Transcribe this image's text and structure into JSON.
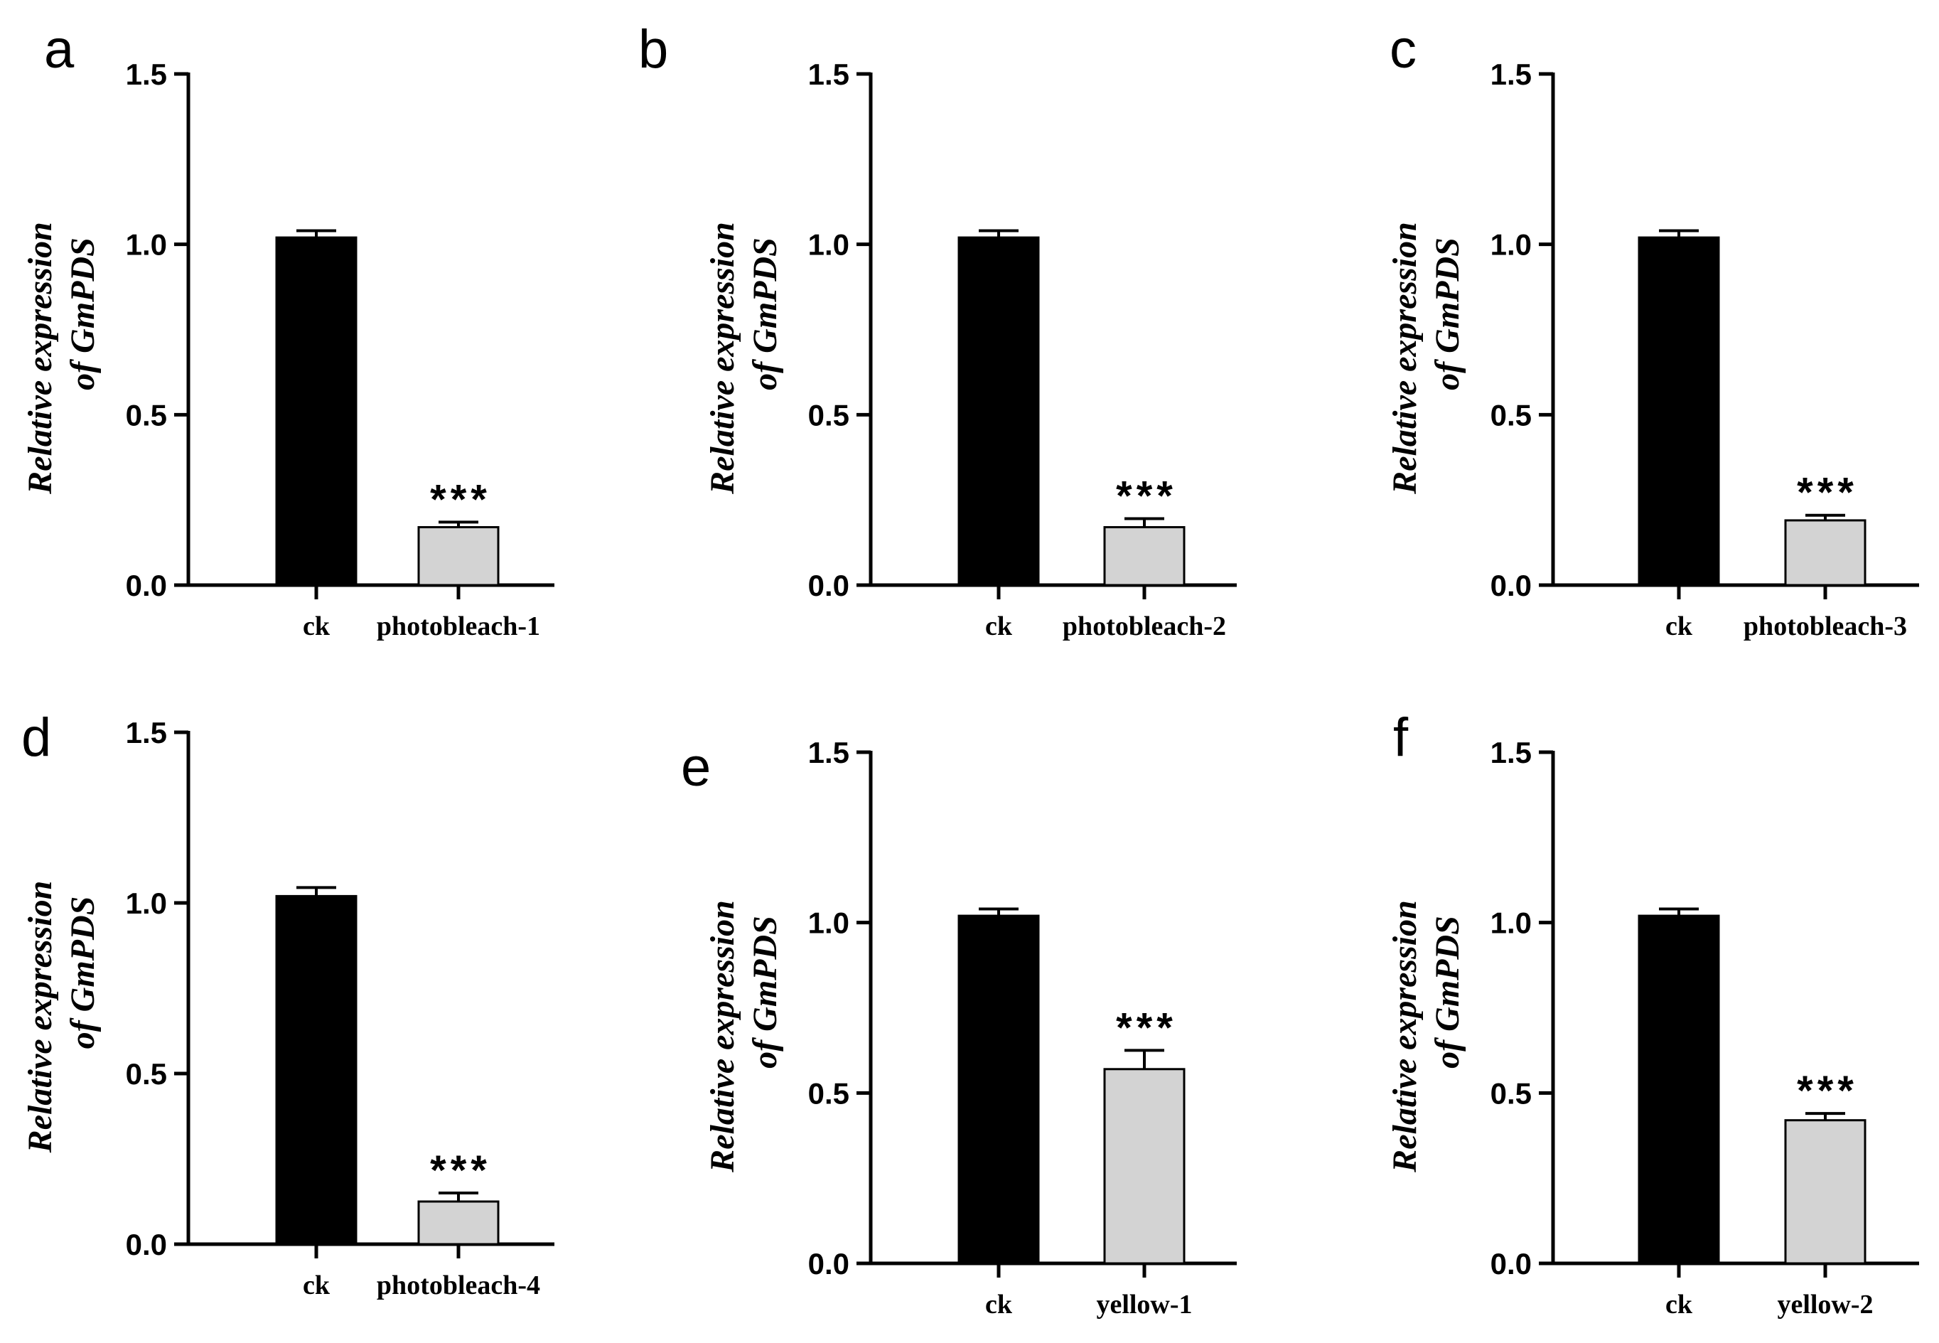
{
  "chart_data": [
    {
      "panel": "a",
      "type": "bar",
      "ylabel_line1": "Relative expression",
      "ylabel_line2": "of GmPDS",
      "ylim": [
        0,
        1.5
      ],
      "yticks": [
        "0.0",
        "0.5",
        "1.0",
        "1.5"
      ],
      "categories": [
        "ck",
        "photobleach-1"
      ],
      "values": [
        1.02,
        0.17
      ],
      "errors": [
        0.02,
        0.015
      ],
      "colors": [
        "#000000",
        "#d3d3d3"
      ],
      "significance": [
        "",
        "***"
      ]
    },
    {
      "panel": "b",
      "type": "bar",
      "ylabel_line1": "Relative expression",
      "ylabel_line2": "of GmPDS",
      "ylim": [
        0,
        1.5
      ],
      "yticks": [
        "0.0",
        "0.5",
        "1.0",
        "1.5"
      ],
      "categories": [
        "ck",
        "photobleach-2"
      ],
      "values": [
        1.02,
        0.17
      ],
      "errors": [
        0.02,
        0.025
      ],
      "colors": [
        "#000000",
        "#d3d3d3"
      ],
      "significance": [
        "",
        "***"
      ]
    },
    {
      "panel": "c",
      "type": "bar",
      "ylabel_line1": "Relative expression",
      "ylabel_line2": "of GmPDS",
      "ylim": [
        0,
        1.5
      ],
      "yticks": [
        "0.0",
        "0.5",
        "1.0",
        "1.5"
      ],
      "categories": [
        "ck",
        "photobleach-3"
      ],
      "values": [
        1.02,
        0.19
      ],
      "errors": [
        0.02,
        0.015
      ],
      "colors": [
        "#000000",
        "#d3d3d3"
      ],
      "significance": [
        "",
        "***"
      ]
    },
    {
      "panel": "d",
      "type": "bar",
      "ylabel_line1": "Relative expression",
      "ylabel_line2": "of GmPDS",
      "ylim": [
        0,
        1.5
      ],
      "yticks": [
        "0.0",
        "0.5",
        "1.0",
        "1.5"
      ],
      "categories": [
        "ck",
        "photobleach-4"
      ],
      "values": [
        1.02,
        0.125
      ],
      "errors": [
        0.025,
        0.025
      ],
      "colors": [
        "#000000",
        "#d3d3d3"
      ],
      "significance": [
        "",
        "***"
      ]
    },
    {
      "panel": "e",
      "type": "bar",
      "ylabel_line1": "Relative expression",
      "ylabel_line2": "of GmPDS",
      "ylim": [
        0,
        1.5
      ],
      "yticks": [
        "0.0",
        "0.5",
        "1.0",
        "1.5"
      ],
      "categories": [
        "ck",
        "yellow-1"
      ],
      "values": [
        1.02,
        0.57
      ],
      "errors": [
        0.02,
        0.055
      ],
      "colors": [
        "#000000",
        "#d3d3d3"
      ],
      "significance": [
        "",
        "***"
      ]
    },
    {
      "panel": "f",
      "type": "bar",
      "ylabel_line1": "Relative expression",
      "ylabel_line2": "of GmPDS",
      "ylim": [
        0,
        1.5
      ],
      "yticks": [
        "0.0",
        "0.5",
        "1.0",
        "1.5"
      ],
      "categories": [
        "ck",
        "yellow-2"
      ],
      "values": [
        1.02,
        0.42
      ],
      "errors": [
        0.02,
        0.02
      ],
      "colors": [
        "#000000",
        "#d3d3d3"
      ],
      "significance": [
        "",
        "***"
      ]
    }
  ]
}
